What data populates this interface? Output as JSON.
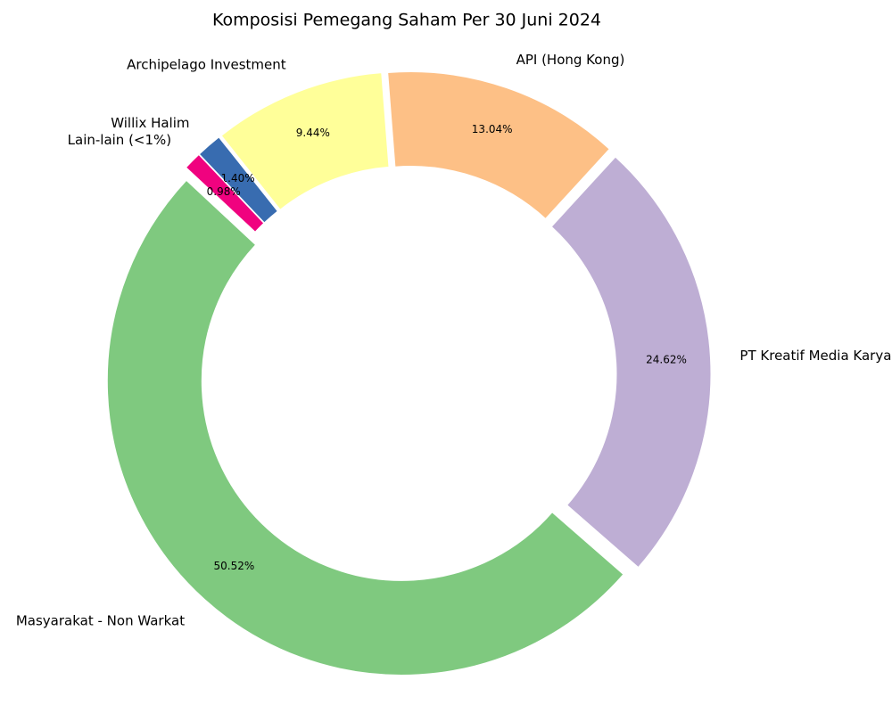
{
  "chart_data": {
    "type": "donut",
    "title": "Komposisi Pemegang Saham Per 30 Juni 2024",
    "categories": [
      "Masyarakat - Non Warkat",
      "PT Kreatif Media Karya",
      "API (Hong Kong)",
      "Archipelago Investment",
      "Willix Halim",
      "Lain-lain (<1%)"
    ],
    "values": [
      50.52,
      24.62,
      13.04,
      9.44,
      1.4,
      0.98
    ],
    "value_labels": [
      "50.52%",
      "24.62%",
      "13.04%",
      "9.44%",
      "1.40%",
      "0.98%"
    ],
    "colors": [
      "#7fc97f",
      "#beaed4",
      "#fdc086",
      "#ffff99",
      "#386cb0",
      "#f0027f"
    ]
  }
}
